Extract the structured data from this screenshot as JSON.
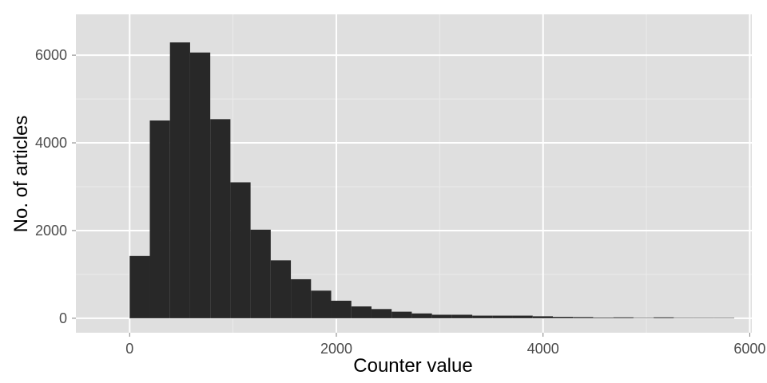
{
  "chart_data": {
    "type": "histogram",
    "title": "",
    "xlabel": "Counter value",
    "ylabel": "No. of articles",
    "xlim": [
      -520,
      6020
    ],
    "ylim": [
      -330,
      6930
    ],
    "x_ticks": [
      0,
      2000,
      4000,
      6000
    ],
    "y_ticks": [
      0,
      2000,
      4000,
      6000
    ],
    "x_minor": [
      1000,
      3000,
      5000
    ],
    "y_minor": [
      1000,
      3000,
      5000
    ],
    "grid": true,
    "bin_width": 195,
    "bins": [
      {
        "start": 0,
        "end": 195,
        "count": 1420
      },
      {
        "start": 195,
        "end": 390,
        "count": 4510
      },
      {
        "start": 390,
        "end": 585,
        "count": 6290
      },
      {
        "start": 585,
        "end": 780,
        "count": 6060
      },
      {
        "start": 780,
        "end": 975,
        "count": 4540
      },
      {
        "start": 975,
        "end": 1170,
        "count": 3100
      },
      {
        "start": 1170,
        "end": 1365,
        "count": 2020
      },
      {
        "start": 1365,
        "end": 1560,
        "count": 1320
      },
      {
        "start": 1560,
        "end": 1755,
        "count": 890
      },
      {
        "start": 1755,
        "end": 1950,
        "count": 630
      },
      {
        "start": 1950,
        "end": 2145,
        "count": 400
      },
      {
        "start": 2145,
        "end": 2340,
        "count": 270
      },
      {
        "start": 2340,
        "end": 2535,
        "count": 210
      },
      {
        "start": 2535,
        "end": 2730,
        "count": 150
      },
      {
        "start": 2730,
        "end": 2925,
        "count": 110
      },
      {
        "start": 2925,
        "end": 3120,
        "count": 80
      },
      {
        "start": 3120,
        "end": 3315,
        "count": 80
      },
      {
        "start": 3315,
        "end": 3510,
        "count": 60
      },
      {
        "start": 3510,
        "end": 3705,
        "count": 60
      },
      {
        "start": 3705,
        "end": 3900,
        "count": 60
      },
      {
        "start": 3900,
        "end": 4095,
        "count": 45
      },
      {
        "start": 4095,
        "end": 4290,
        "count": 30
      },
      {
        "start": 4290,
        "end": 4485,
        "count": 25
      },
      {
        "start": 4485,
        "end": 4680,
        "count": 15
      },
      {
        "start": 4680,
        "end": 4875,
        "count": 20
      },
      {
        "start": 4875,
        "end": 5070,
        "count": 10
      },
      {
        "start": 5070,
        "end": 5265,
        "count": 20
      },
      {
        "start": 5265,
        "end": 5460,
        "count": 10
      },
      {
        "start": 5460,
        "end": 5655,
        "count": 10
      },
      {
        "start": 5655,
        "end": 5850,
        "count": 10
      }
    ],
    "colors": {
      "panel": "#dfdfdf",
      "grid_major": "#ffffff",
      "grid_minor": "#ebebeb",
      "bar": "#282828",
      "tick_label": "#4d4d4d",
      "axis_title": "#000000"
    }
  }
}
